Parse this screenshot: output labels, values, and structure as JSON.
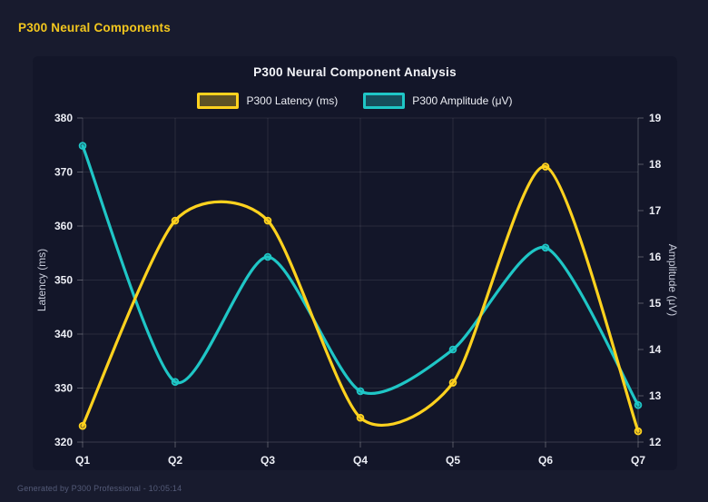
{
  "page": {
    "header_title": "P300 Neural Components",
    "footer": "Generated by P300 Professional - 10:05:14"
  },
  "colors": {
    "background": "#181b2e",
    "panel": "#131629",
    "latency": "#ffd21e",
    "amplitude": "#1fc6c6",
    "grid": "rgba(255,255,255,0.09)",
    "axis_border": "rgba(255,255,255,0.16)",
    "tick_mark": "rgba(255,255,255,0.28)",
    "tick_label": "#eceef5",
    "axis_title": "#c7cbd9",
    "title_text": "#f4f5f9",
    "header_text": "#f3c71e",
    "footer_text": "#545b78"
  },
  "chart_data": {
    "type": "line",
    "curve": "spline",
    "grid": true,
    "legend_position": "top",
    "title": "P300 Neural Component Analysis",
    "categories": [
      "Q1",
      "Q2",
      "Q3",
      "Q4",
      "Q5",
      "Q6",
      "Q7"
    ],
    "series": [
      {
        "name": "P300 Latency (ms)",
        "axis": "left",
        "color": "#ffd21e",
        "values": [
          323,
          361,
          361,
          324.5,
          331,
          371,
          322
        ]
      },
      {
        "name": "P300 Amplitude (μV)",
        "axis": "right",
        "color": "#1fc6c6",
        "values": [
          18.4,
          13.3,
          16.0,
          13.1,
          14.0,
          16.2,
          12.8
        ]
      }
    ],
    "axes": {
      "left": {
        "title": "Latency (ms)",
        "min": 320,
        "max": 380,
        "step": 10
      },
      "right": {
        "title": "Amplitude (μV)",
        "min": 12,
        "max": 19,
        "step": 1
      }
    }
  }
}
